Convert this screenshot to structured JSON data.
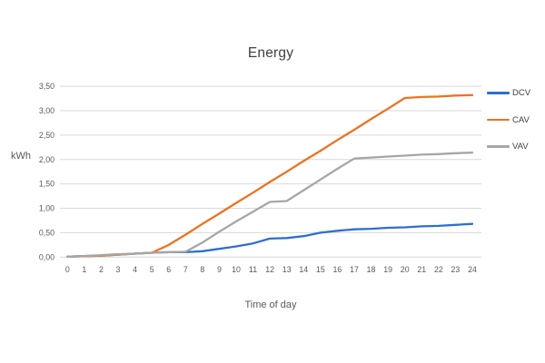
{
  "chart_data": {
    "type": "line",
    "title": "Energy",
    "xlabel": "Time of day",
    "ylabel": "kWh",
    "legend_position": "right",
    "grid": "horizontal",
    "xlim": [
      0,
      24
    ],
    "ylim": [
      0,
      3.5
    ],
    "x": [
      0,
      1,
      2,
      3,
      4,
      5,
      6,
      7,
      8,
      9,
      10,
      11,
      12,
      13,
      14,
      15,
      16,
      17,
      18,
      19,
      20,
      21,
      22,
      23,
      24
    ],
    "x_tick_labels": [
      "0",
      "1",
      "2",
      "3",
      "4",
      "5",
      "6",
      "7",
      "8",
      "9",
      "10",
      "11",
      "12",
      "13",
      "14",
      "15",
      "16",
      "17",
      "18",
      "19",
      "20",
      "21",
      "22",
      "23",
      "24"
    ],
    "y_ticks": {
      "values": [
        0,
        0.5,
        1.0,
        1.5,
        2.0,
        2.5,
        3.0,
        3.5
      ],
      "labels": [
        "0,00",
        "0,50",
        "1,00",
        "1,50",
        "2,00",
        "2,50",
        "3,00",
        "3,50"
      ]
    },
    "series": [
      {
        "name": "DCV",
        "color": "#2E6FD0",
        "values": [
          0.01,
          0.02,
          0.03,
          0.05,
          0.07,
          0.09,
          0.1,
          0.1,
          0.12,
          0.17,
          0.22,
          0.28,
          0.38,
          0.39,
          0.43,
          0.5,
          0.54,
          0.57,
          0.58,
          0.6,
          0.61,
          0.63,
          0.64,
          0.66,
          0.68
        ]
      },
      {
        "name": "CAV",
        "color": "#ED7220",
        "values": [
          0.01,
          0.02,
          0.03,
          0.05,
          0.07,
          0.09,
          0.25,
          0.46,
          0.68,
          0.89,
          1.11,
          1.32,
          1.54,
          1.75,
          1.97,
          2.18,
          2.4,
          2.61,
          2.83,
          3.04,
          3.26,
          3.28,
          3.29,
          3.31,
          3.32
        ]
      },
      {
        "name": "VAV",
        "color": "#A6A6A6",
        "values": [
          0.01,
          0.02,
          0.04,
          0.06,
          0.07,
          0.09,
          0.1,
          0.11,
          0.3,
          0.52,
          0.73,
          0.93,
          1.13,
          1.15,
          1.37,
          1.59,
          1.81,
          2.02,
          2.04,
          2.06,
          2.08,
          2.1,
          2.11,
          2.13,
          2.14
        ]
      }
    ],
    "colors": {
      "gridline": "#D9D9D9",
      "tick_label": "#595959",
      "title": "#404040",
      "axis_title": "#595959",
      "legend_label": "#404040",
      "background": "#FFFFFF"
    }
  }
}
